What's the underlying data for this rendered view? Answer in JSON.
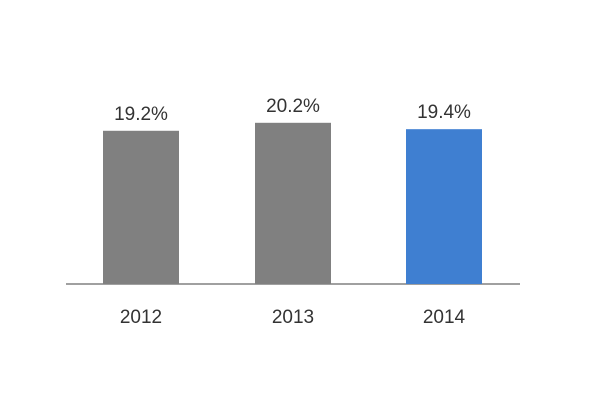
{
  "chart_data": {
    "type": "bar",
    "categories": [
      "2012",
      "2013",
      "2014"
    ],
    "values": [
      19.2,
      20.2,
      19.4
    ],
    "data_labels": [
      "19.2%",
      "20.2%",
      "19.4%"
    ],
    "colors": [
      "#808080",
      "#808080",
      "#3f7fd1"
    ],
    "axis_color": "#808080",
    "label_color": "#333333",
    "title": "",
    "xlabel": "",
    "ylabel": "",
    "ylim": [
      0,
      25
    ],
    "grid": false,
    "legend": "none"
  }
}
